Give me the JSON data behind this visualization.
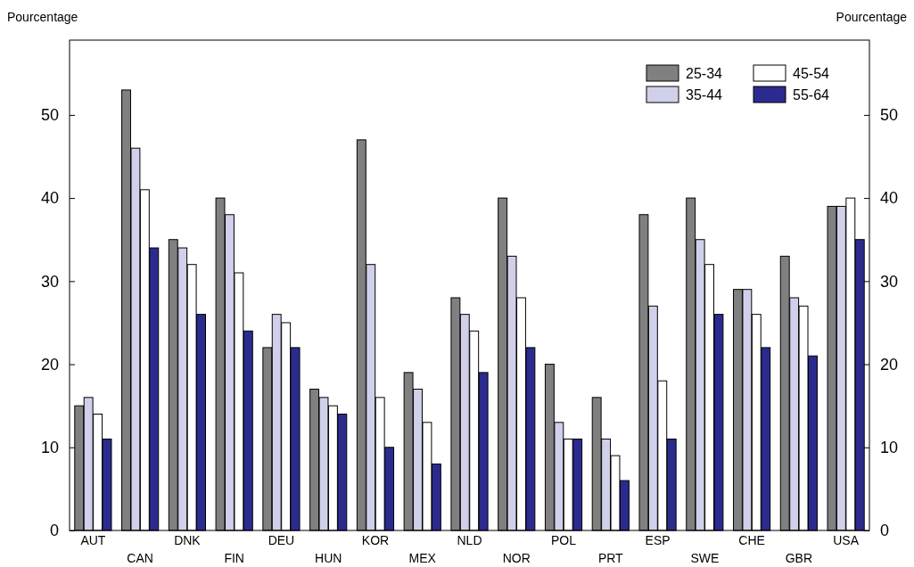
{
  "chart_data": {
    "type": "bar",
    "ylabel": "Pourcentage",
    "y2label": "Pourcentage",
    "categories": [
      "AUT",
      "CAN",
      "DNK",
      "FIN",
      "DEU",
      "HUN",
      "KOR",
      "MEX",
      "NLD",
      "NOR",
      "POL",
      "PRT",
      "ESP",
      "SWE",
      "CHE",
      "GBR",
      "USA"
    ],
    "series": [
      {
        "name": "25-34",
        "color": "#808080",
        "values": [
          15,
          53,
          35,
          40,
          22,
          17,
          47,
          19,
          28,
          40,
          20,
          16,
          38,
          40,
          29,
          33,
          39
        ]
      },
      {
        "name": "35-44",
        "color": "#d0d0ea",
        "values": [
          16,
          46,
          34,
          38,
          26,
          16,
          32,
          17,
          26,
          33,
          13,
          11,
          27,
          35,
          29,
          28,
          39
        ]
      },
      {
        "name": "45-54",
        "color": "#ffffff",
        "values": [
          14,
          41,
          32,
          31,
          25,
          15,
          16,
          13,
          24,
          28,
          11,
          9,
          18,
          32,
          26,
          27,
          40
        ]
      },
      {
        "name": "55-64",
        "color": "#2b2b8f",
        "values": [
          11,
          34,
          26,
          24,
          22,
          14,
          10,
          8,
          19,
          22,
          11,
          6,
          11,
          26,
          22,
          21,
          35
        ]
      }
    ],
    "ylim": [
      0,
      59
    ],
    "yticks": [
      0,
      10,
      20,
      30,
      40,
      50
    ],
    "y2lim": [
      0,
      59
    ],
    "y2ticks": [
      0,
      10,
      20,
      30,
      40,
      50
    ],
    "legend": "top right",
    "grid": false
  }
}
